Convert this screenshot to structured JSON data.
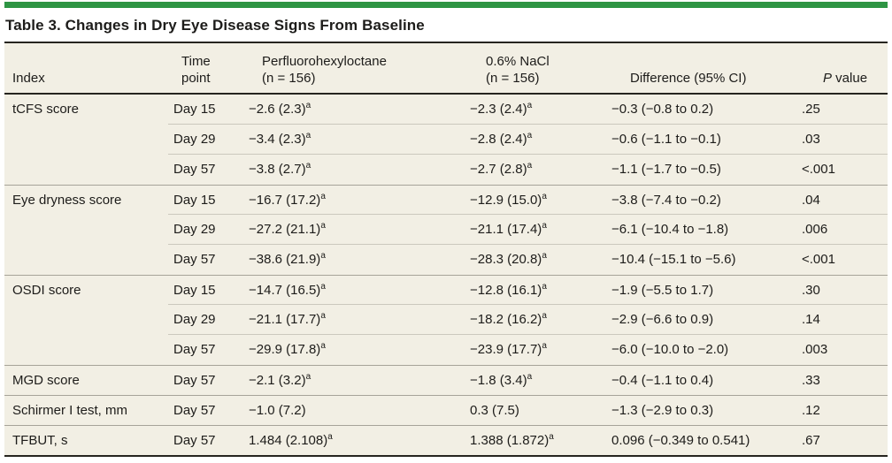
{
  "colors": {
    "accent_green": "#2e9544",
    "table_background": "#f2efe4",
    "dark_rule": "#26251f",
    "group_separator": "#a6a399",
    "inner_separator": "#cbc8bd",
    "text": "#1d1c1a"
  },
  "table": {
    "title": "Table 3. Changes in Dry Eye Disease Signs From Baseline",
    "columns": [
      {
        "line1": "Index"
      },
      {
        "line1": "Time",
        "line2": "point"
      },
      {
        "line1": "Perfluorohexyloctane",
        "line2": "(n = 156)"
      },
      {
        "line1": "0.6% NaCl",
        "line2": "(n = 156)"
      },
      {
        "line1": "Difference (95% CI)"
      },
      {
        "prefix_italic": "P",
        "line1": " value"
      }
    ],
    "rows": [
      {
        "index": "tCFS score",
        "time": "Day 15",
        "pfho": "−2.6 (2.3)",
        "pfho_sup": "a",
        "nacl": "−2.3 (2.4)",
        "nacl_sup": "a",
        "diff": "−0.3 (−0.8 to 0.2)",
        "p": ".25"
      },
      {
        "index": "",
        "time": "Day 29",
        "pfho": "−3.4 (2.3)",
        "pfho_sup": "a",
        "nacl": "−2.8 (2.4)",
        "nacl_sup": "a",
        "diff": "−0.6 (−1.1 to −0.1)",
        "p": ".03"
      },
      {
        "index": "",
        "time": "Day 57",
        "pfho": "−3.8 (2.7)",
        "pfho_sup": "a",
        "nacl": "−2.7 (2.8)",
        "nacl_sup": "a",
        "diff": "−1.1 (−1.7 to −0.5)",
        "p": "<.001"
      },
      {
        "index": "Eye dryness score",
        "time": "Day 15",
        "pfho": "−16.7 (17.2)",
        "pfho_sup": "a",
        "nacl": "−12.9 (15.0)",
        "nacl_sup": "a",
        "diff": "−3.8 (−7.4 to −0.2)",
        "p": ".04"
      },
      {
        "index": "",
        "time": "Day 29",
        "pfho": "−27.2 (21.1)",
        "pfho_sup": "a",
        "nacl": "−21.1 (17.4)",
        "nacl_sup": "a",
        "diff": "−6.1 (−10.4 to −1.8)",
        "p": ".006"
      },
      {
        "index": "",
        "time": "Day 57",
        "pfho": "−38.6 (21.9)",
        "pfho_sup": "a",
        "nacl": "−28.3 (20.8)",
        "nacl_sup": "a",
        "diff": "−10.4 (−15.1 to −5.6)",
        "p": "<.001"
      },
      {
        "index": "OSDI score",
        "time": "Day 15",
        "pfho": "−14.7 (16.5)",
        "pfho_sup": "a",
        "nacl": "−12.8 (16.1)",
        "nacl_sup": "a",
        "diff": "−1.9 (−5.5 to 1.7)",
        "p": ".30"
      },
      {
        "index": "",
        "time": "Day 29",
        "pfho": "−21.1 (17.7)",
        "pfho_sup": "a",
        "nacl": "−18.2 (16.2)",
        "nacl_sup": "a",
        "diff": "−2.9 (−6.6 to 0.9)",
        "p": ".14"
      },
      {
        "index": "",
        "time": "Day 57",
        "pfho": "−29.9 (17.8)",
        "pfho_sup": "a",
        "nacl": "−23.9 (17.7)",
        "nacl_sup": "a",
        "diff": "−6.0 (−10.0 to −2.0)",
        "p": ".003"
      },
      {
        "index": "MGD score",
        "time": "Day 57",
        "pfho": "−2.1 (3.2)",
        "pfho_sup": "a",
        "nacl": "−1.8 (3.4)",
        "nacl_sup": "a",
        "diff": "−0.4 (−1.1 to 0.4)",
        "p": ".33"
      },
      {
        "index": "Schirmer I test, mm",
        "time": "Day 57",
        "pfho": "−1.0 (7.2)",
        "pfho_sup": "",
        "nacl": "0.3 (7.5)",
        "nacl_sup": "",
        "diff": "−1.3 (−2.9 to 0.3)",
        "p": ".12"
      },
      {
        "index": "TFBUT, s",
        "time": "Day 57",
        "pfho": "1.484 (2.108)",
        "pfho_sup": "a",
        "nacl": "1.388 (1.872)",
        "nacl_sup": "a",
        "diff": "0.096 (−0.349 to 0.541)",
        "p": ".67"
      }
    ]
  }
}
